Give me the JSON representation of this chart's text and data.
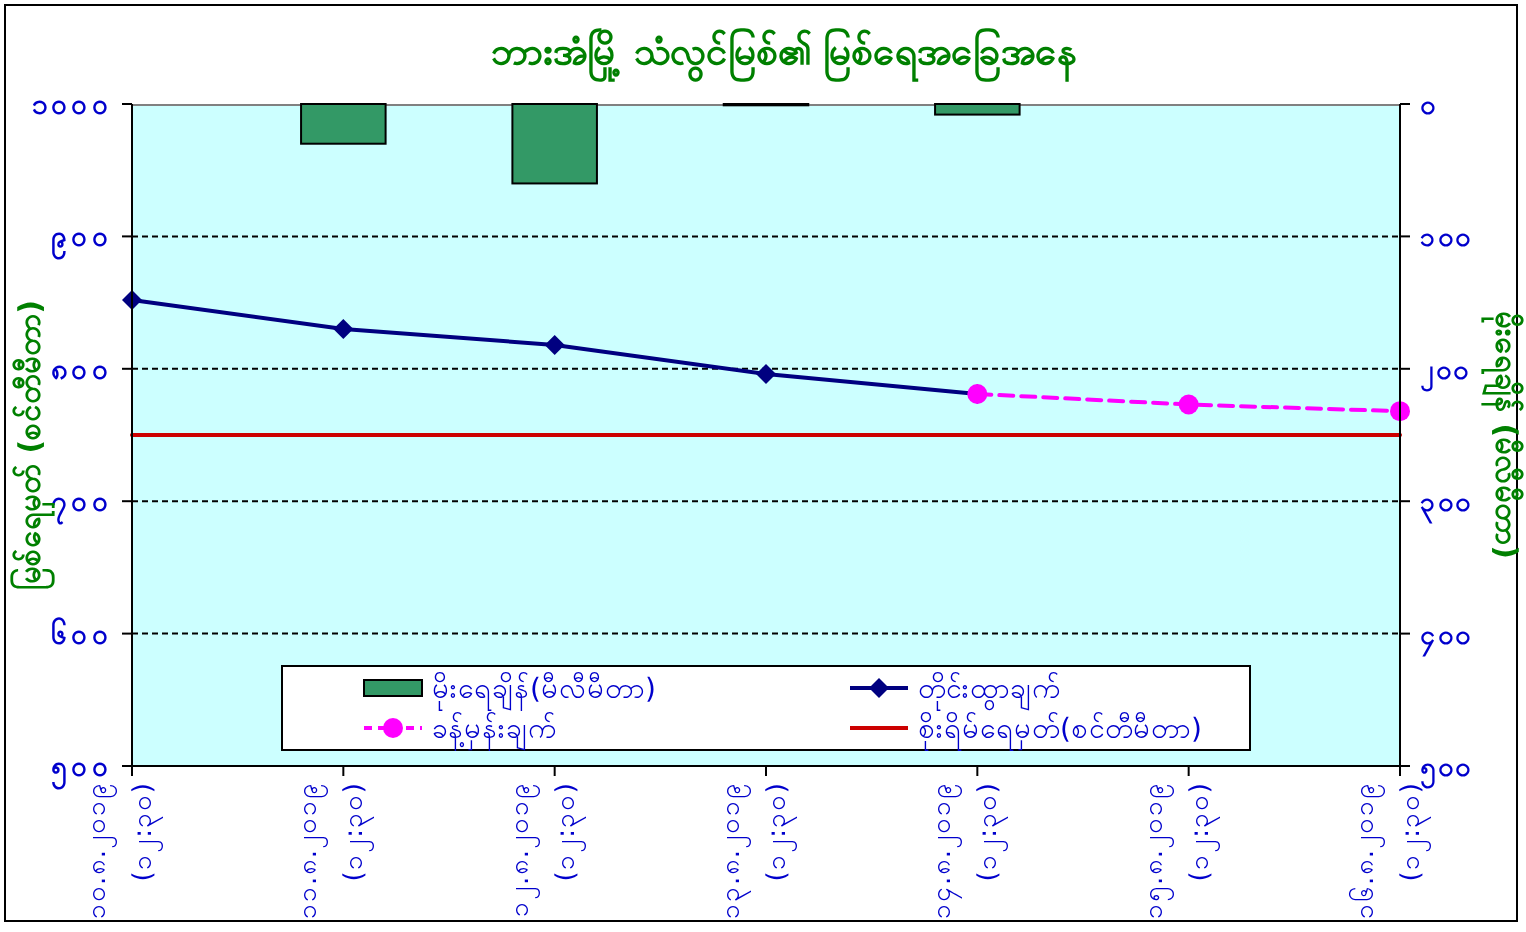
{
  "chart_data": {
    "type": "line",
    "title": "ဘားအံမြို့ သံလွင်မြစ်၏ မြစ်ရေအခြေအနေ",
    "ylabel": "မြစ်ရေမှတ် (စင်တီမီတာ)",
    "y2label": "မိုးရေချိန် (မီလီမီတာ)",
    "categories": [
      "၁၀.၈.၂၀၁၉ (၁၂:၃၀)",
      "၁၁.၈.၂၀၁၉ (၁၂:၃၀)",
      "၁၂.၈.၂၀၁၉ (၁၂:၃၀)",
      "၁၃.၈.၂၀၁၉ (၁၂:၃၀)",
      "၁၄.၈.၂၀၁၉ (၁၂:၃၀)",
      "၁၅.၈.၂၀၁၉ (၁၂:၃၀)",
      "၁၆.၈.၂၀၁၉ (၁၂:၃၀)"
    ],
    "series": [
      {
        "name": "မိုးရေချိန်(မီလီမီတာ)",
        "type": "bar",
        "axis": "y2",
        "color": "#339966",
        "values": [
          null,
          30,
          60,
          1,
          8,
          null,
          null
        ]
      },
      {
        "name": "တိုင်းထွာချက်",
        "color": "#000080",
        "marker": "diamond",
        "line_style": "solid",
        "values": [
          852,
          830,
          818,
          796,
          781,
          null,
          null
        ]
      },
      {
        "name": "ခန့်မှန်းချက်",
        "color": "#ff00ff",
        "marker": "circle",
        "line_style": "dashed",
        "values": [
          null,
          null,
          null,
          null,
          781,
          773,
          768
        ]
      },
      {
        "name": "စိုးရိမ်ရေမှတ်(စင်တီမီတာ)",
        "color": "#cc0000",
        "marker": "none",
        "line_style": "solid",
        "values": [
          750,
          750,
          750,
          750,
          750,
          750,
          750
        ]
      }
    ],
    "ylim": [
      500,
      1000
    ],
    "yticks": [
      {
        "value": 500,
        "label": "၅၀၀"
      },
      {
        "value": 600,
        "label": "၆၀၀"
      },
      {
        "value": 700,
        "label": "၇၀၀"
      },
      {
        "value": 800,
        "label": "၈၀၀"
      },
      {
        "value": 900,
        "label": "၉၀၀"
      },
      {
        "value": 1000,
        "label": "၁၀၀၀"
      }
    ],
    "y2lim": [
      500,
      0
    ],
    "y2ticks": [
      {
        "value": 0,
        "label": "၀"
      },
      {
        "value": 100,
        "label": "၁၀၀"
      },
      {
        "value": 200,
        "label": "၂၀၀"
      },
      {
        "value": 300,
        "label": "၃၀၀"
      },
      {
        "value": 400,
        "label": "၄၀၀"
      },
      {
        "value": 500,
        "label": "၅၀၀"
      }
    ],
    "grid": "y",
    "legend": "bottom"
  }
}
